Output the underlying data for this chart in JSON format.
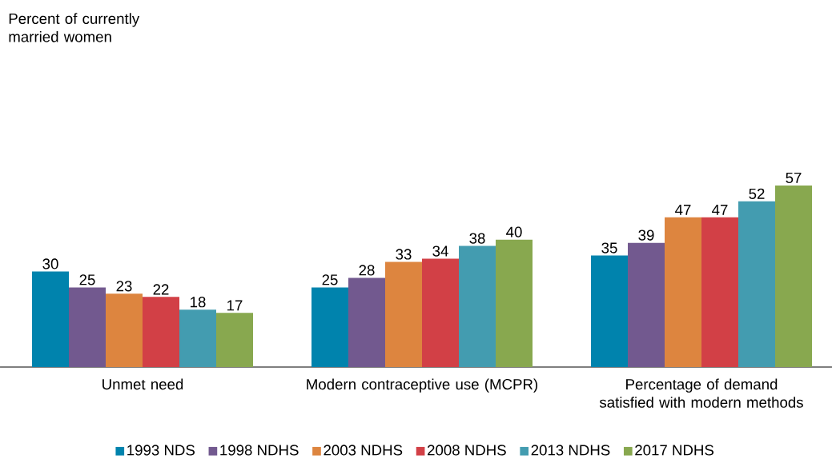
{
  "chart_data": {
    "type": "bar",
    "annotations": [
      "Percent of currently married women"
    ],
    "categories": [
      "Unmet need",
      "Modern contraceptive use (MCPR)",
      "Percentage of demand satisfied with modern methods"
    ],
    "series": [
      {
        "name": "1993 NDS",
        "color": "#0083ad",
        "values": [
          30,
          25,
          35
        ]
      },
      {
        "name": "1998 NDHS",
        "color": "#72598f",
        "values": [
          25,
          28,
          39
        ]
      },
      {
        "name": "2003 NDHS",
        "color": "#dd853f",
        "values": [
          23,
          33,
          47
        ]
      },
      {
        "name": "2008 NDHS",
        "color": "#d24046",
        "values": [
          22,
          34,
          47
        ]
      },
      {
        "name": "2013 NDHS",
        "color": "#439cb0",
        "values": [
          18,
          38,
          52
        ]
      },
      {
        "name": "2017 NDHS",
        "color": "#88a84f",
        "values": [
          17,
          40,
          57
        ]
      }
    ],
    "data_labels": true,
    "legend": "bottom"
  }
}
